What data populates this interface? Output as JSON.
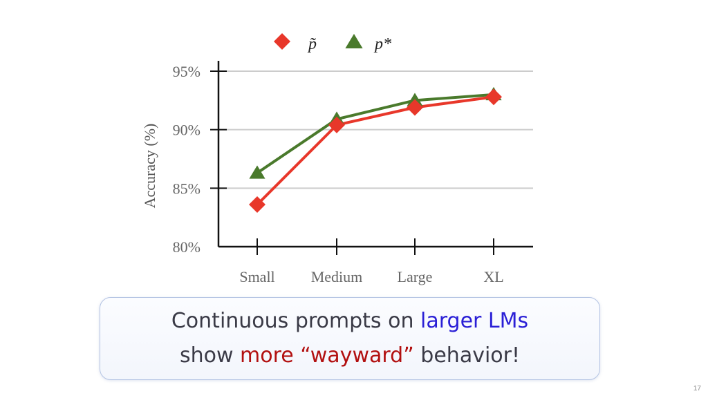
{
  "chart_data": {
    "type": "line",
    "categories": [
      "Small",
      "Medium",
      "Large",
      "XL"
    ],
    "series": [
      {
        "name": "p̃",
        "marker": "diamond",
        "color": "#e8372a",
        "values": [
          83.6,
          90.4,
          91.9,
          92.8
        ]
      },
      {
        "name": "p*",
        "marker": "triangle",
        "color": "#4a7a2c",
        "values": [
          86.3,
          90.9,
          92.5,
          93.0
        ]
      }
    ],
    "title": "",
    "xlabel": "",
    "ylabel": "Accuracy (%)",
    "ylim": [
      80,
      95
    ],
    "yticks": [
      80,
      85,
      90,
      95
    ],
    "ytick_labels": [
      "80%",
      "85%",
      "90%",
      "95%"
    ],
    "grid": true,
    "legend_position": "top-center"
  },
  "callout": {
    "line1_text": "Continuous prompts on ",
    "line1_highlight": "larger LMs",
    "line2_text_before": "show ",
    "line2_highlight": "more “wayward”",
    "line2_text_after": " behavior!"
  },
  "page_number": "17"
}
